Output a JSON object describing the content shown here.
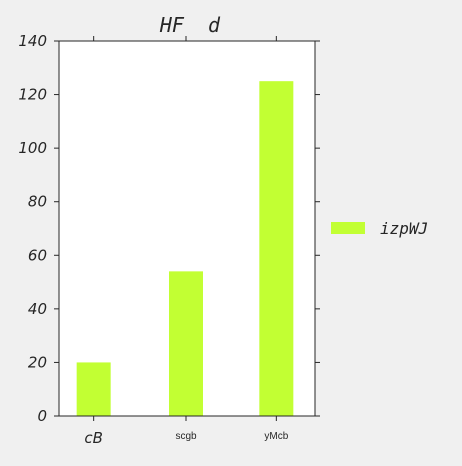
{
  "chart_data": {
    "type": "bar",
    "title": "HF  d",
    "xlabel": "",
    "ylabel": "",
    "categories": [
      "cB",
      "scgb",
      "yMcb"
    ],
    "series": [
      {
        "name": "izpWJ",
        "values": [
          20,
          54,
          125
        ],
        "color": "#c2ff33"
      }
    ],
    "ylim": [
      0,
      140
    ],
    "yticks": [
      0,
      20,
      40,
      60,
      80,
      100,
      120,
      140
    ],
    "ytick_labels": [
      "0",
      "20",
      "40",
      "60",
      "80",
      "100",
      "120",
      "140"
    ],
    "grid": false,
    "legend_position": "right"
  },
  "colors": {
    "background": "#f0f0f0",
    "plot_background": "#ffffff",
    "axis": "#262626",
    "bar": "#c2ff33"
  }
}
